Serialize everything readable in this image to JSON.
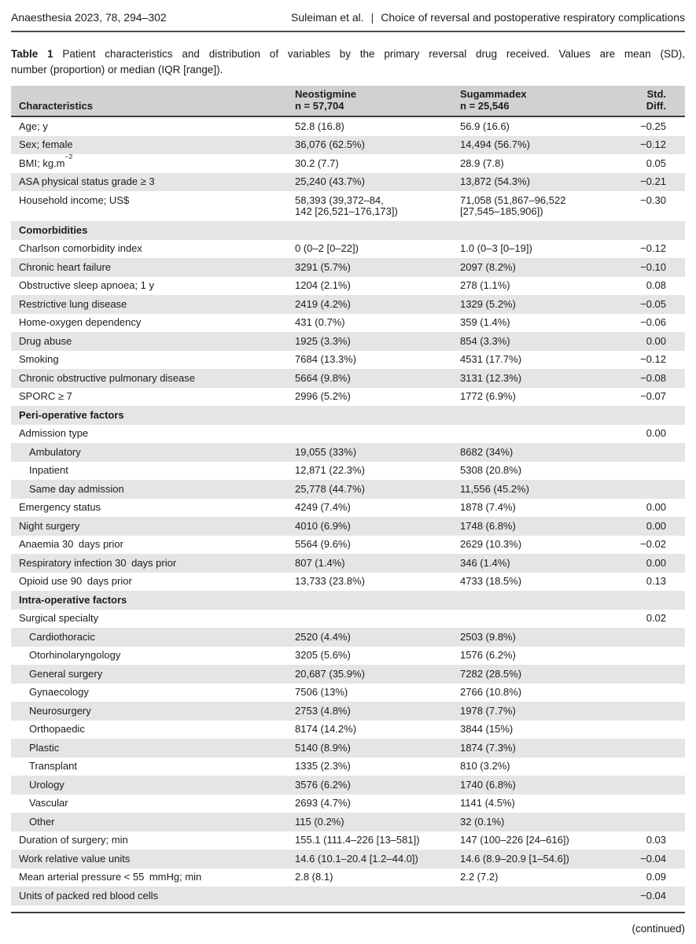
{
  "page_header": {
    "journal_ref": "Anaesthesia 2023, 78, 294–302",
    "authors": "Suleiman et al.",
    "separator": "|",
    "article_title": "Choice of reversal and postoperative respiratory complications"
  },
  "caption": {
    "label": "Table 1",
    "line1": "Patient characteristics and distribution of variables by the primary reversal drug received. Values are mean (SD),",
    "line2": "number (proportion) or median (IQR [range])."
  },
  "table": {
    "columns": {
      "characteristics": "Characteristics",
      "neostigmine": {
        "name": "Neostigmine",
        "n": "n = 57,704"
      },
      "sugammadex": {
        "name": "Sugammadex",
        "n": "n = 25,546"
      },
      "std_diff": "Std. Diff."
    },
    "rows": [
      {
        "type": "data",
        "label": "Age; y",
        "neo": "52.8 (16.8)",
        "sug": "56.9 (16.6)",
        "std": "−0.25"
      },
      {
        "type": "data",
        "label": "Sex; female",
        "neo": "36,076 (62.5%)",
        "sug": "14,494 (56.7%)",
        "std": "−0.12"
      },
      {
        "type": "data",
        "label": "BMI; kg.m",
        "label_sup": "−2",
        "neo": "30.2 (7.7)",
        "sug": "28.9 (7.8)",
        "std": "0.05"
      },
      {
        "type": "data",
        "label": "ASA physical status grade ≥ 3",
        "neo": "25,240 (43.7%)",
        "sug": "13,872 (54.3%)",
        "std": "−0.21"
      },
      {
        "type": "data",
        "label": "Household income; US$",
        "neo": "58,393 (39,372–84,\n142 [26,521–176,173])",
        "sug": "71,058 (51,867–96,522\n[27,545–185,906])",
        "std": "−0.30"
      },
      {
        "type": "section",
        "label": "Comorbidities"
      },
      {
        "type": "data",
        "label": "Charlson comorbidity index",
        "neo": "0 (0–2 [0–22])",
        "sug": "1.0 (0–3 [0–19])",
        "std": "−0.12"
      },
      {
        "type": "data",
        "label": "Chronic heart failure",
        "neo": "3291 (5.7%)",
        "sug": "2097 (8.2%)",
        "std": "−0.10"
      },
      {
        "type": "data",
        "label": "Obstructive sleep apnoea; 1 y",
        "neo": "1204 (2.1%)",
        "sug": "278 (1.1%)",
        "std": "0.08"
      },
      {
        "type": "data",
        "label": "Restrictive lung disease",
        "neo": "2419 (4.2%)",
        "sug": "1329 (5.2%)",
        "std": "−0.05"
      },
      {
        "type": "data",
        "label": "Home-oxygen dependency",
        "neo": "431 (0.7%)",
        "sug": "359 (1.4%)",
        "std": "−0.06"
      },
      {
        "type": "data",
        "label": "Drug abuse",
        "neo": "1925 (3.3%)",
        "sug": "854 (3.3%)",
        "std": "0.00"
      },
      {
        "type": "data",
        "label": "Smoking",
        "neo": "7684 (13.3%)",
        "sug": "4531 (17.7%)",
        "std": "−0.12"
      },
      {
        "type": "data",
        "label": "Chronic obstructive pulmonary disease",
        "neo": "5664 (9.8%)",
        "sug": "3131 (12.3%)",
        "std": "−0.08"
      },
      {
        "type": "data",
        "label": "SPORC ≥ 7",
        "neo": "2996 (5.2%)",
        "sug": "1772 (6.9%)",
        "std": "−0.07"
      },
      {
        "type": "section",
        "label": "Peri-operative factors"
      },
      {
        "type": "data",
        "label": "Admission type",
        "neo": "",
        "sug": "",
        "std": "0.00"
      },
      {
        "type": "data",
        "indent": true,
        "label": "Ambulatory",
        "neo": "19,055 (33%)",
        "sug": "8682 (34%)",
        "std": ""
      },
      {
        "type": "data",
        "indent": true,
        "label": "Inpatient",
        "neo": "12,871 (22.3%)",
        "sug": "5308 (20.8%)",
        "std": ""
      },
      {
        "type": "data",
        "indent": true,
        "label": "Same day admission",
        "neo": "25,778 (44.7%)",
        "sug": "11,556 (45.2%)",
        "std": ""
      },
      {
        "type": "data",
        "label": "Emergency status",
        "neo": "4249 (7.4%)",
        "sug": "1878 (7.4%)",
        "std": "0.00"
      },
      {
        "type": "data",
        "label": "Night surgery",
        "neo": "4010 (6.9%)",
        "sug": "1748 (6.8%)",
        "std": "0.00"
      },
      {
        "type": "data",
        "label": "Anaemia 30 days prior",
        "neo": "5564 (9.6%)",
        "sug": "2629 (10.3%)",
        "std": "−0.02"
      },
      {
        "type": "data",
        "label": "Respiratory infection 30 days prior",
        "neo": "807 (1.4%)",
        "sug": "346 (1.4%)",
        "std": "0.00"
      },
      {
        "type": "data",
        "label": "Opioid use 90 days prior",
        "neo": "13,733 (23.8%)",
        "sug": "4733 (18.5%)",
        "std": "0.13"
      },
      {
        "type": "section",
        "label": "Intra-operative factors"
      },
      {
        "type": "data",
        "label": "Surgical specialty",
        "neo": "",
        "sug": "",
        "std": "0.02"
      },
      {
        "type": "data",
        "indent": true,
        "label": "Cardiothoracic",
        "neo": "2520 (4.4%)",
        "sug": "2503 (9.8%)",
        "std": ""
      },
      {
        "type": "data",
        "indent": true,
        "label": "Otorhinolaryngology",
        "neo": "3205 (5.6%)",
        "sug": "1576 (6.2%)",
        "std": ""
      },
      {
        "type": "data",
        "indent": true,
        "label": "General surgery",
        "neo": "20,687 (35.9%)",
        "sug": "7282 (28.5%)",
        "std": ""
      },
      {
        "type": "data",
        "indent": true,
        "label": "Gynaecology",
        "neo": "7506 (13%)",
        "sug": "2766 (10.8%)",
        "std": ""
      },
      {
        "type": "data",
        "indent": true,
        "label": "Neurosurgery",
        "neo": "2753 (4.8%)",
        "sug": "1978 (7.7%)",
        "std": ""
      },
      {
        "type": "data",
        "indent": true,
        "label": "Orthopaedic",
        "neo": "8174 (14.2%)",
        "sug": "3844 (15%)",
        "std": ""
      },
      {
        "type": "data",
        "indent": true,
        "label": "Plastic",
        "neo": "5140 (8.9%)",
        "sug": "1874 (7.3%)",
        "std": ""
      },
      {
        "type": "data",
        "indent": true,
        "label": "Transplant",
        "neo": "1335 (2.3%)",
        "sug": "810 (3.2%)",
        "std": ""
      },
      {
        "type": "data",
        "indent": true,
        "label": "Urology",
        "neo": "3576 (6.2%)",
        "sug": "1740 (6.8%)",
        "std": ""
      },
      {
        "type": "data",
        "indent": true,
        "label": "Vascular",
        "neo": "2693 (4.7%)",
        "sug": "1141 (4.5%)",
        "std": ""
      },
      {
        "type": "data",
        "indent": true,
        "label": "Other",
        "neo": "115 (0.2%)",
        "sug": "32 (0.1%)",
        "std": ""
      },
      {
        "type": "data",
        "label": "Duration of surgery; min",
        "neo": "155.1 (111.4–226 [13–581])",
        "sug": "147 (100–226 [24–616])",
        "std": "0.03"
      },
      {
        "type": "data",
        "label": "Work relative value units",
        "neo": "14.6 (10.1–20.4 [1.2–44.0])",
        "sug": "14.6 (8.9–20.9 [1–54.6])",
        "std": "−0.04"
      },
      {
        "type": "data",
        "label": "Mean arterial pressure < 55 mmHg; min",
        "neo": "2.8 (8.1)",
        "sug": "2.2 (7.2)",
        "std": "0.09"
      },
      {
        "type": "data",
        "label": "Units of packed red blood cells",
        "neo": "",
        "sug": "",
        "std": "−0.04"
      }
    ]
  },
  "footer": {
    "continued": "(continued)"
  }
}
